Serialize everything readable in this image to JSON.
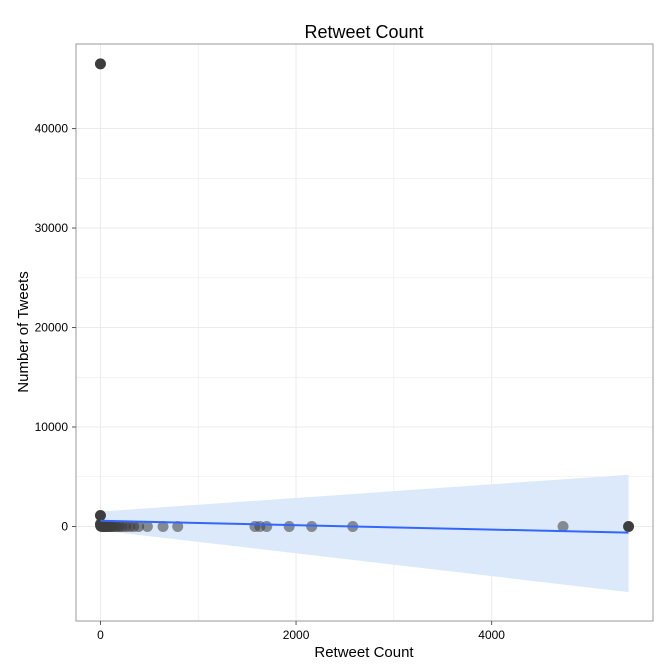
{
  "chart_data": {
    "type": "scatter",
    "title": "Retweet Count",
    "xlabel": "Retweet Count",
    "ylabel": "Number of Tweets",
    "xlim": [
      -250,
      5650
    ],
    "ylim": [
      -9500,
      48500
    ],
    "x_ticks": [
      0,
      2000,
      4000
    ],
    "y_ticks": [
      0,
      10000,
      20000,
      30000,
      40000
    ],
    "grid": true,
    "legend": "none",
    "colors": {
      "point": "#3d3d3d",
      "smooth_line": "#3366ff",
      "confidence_band": "#dce9fb",
      "grid": "#ebebeb",
      "panel_border": "#9a9a9a"
    },
    "points": [
      {
        "x": 0,
        "y": 46500,
        "alpha": 1.0
      },
      {
        "x": 0,
        "y": 1100,
        "alpha": 1.0
      },
      {
        "x": 1,
        "y": 250,
        "alpha": 1.0
      },
      {
        "x": 2,
        "y": 150,
        "alpha": 1.0
      },
      {
        "x": 3,
        "y": 80,
        "alpha": 1.0
      },
      {
        "x": 5,
        "y": 40,
        "alpha": 1.0
      },
      {
        "x": 8,
        "y": 30,
        "alpha": 1.0
      },
      {
        "x": 12,
        "y": 20,
        "alpha": 1.0
      },
      {
        "x": 18,
        "y": 15,
        "alpha": 1.0
      },
      {
        "x": 25,
        "y": 10,
        "alpha": 1.0
      },
      {
        "x": 35,
        "y": 8,
        "alpha": 1.0
      },
      {
        "x": 45,
        "y": 6,
        "alpha": 1.0
      },
      {
        "x": 55,
        "y": 5,
        "alpha": 0.95
      },
      {
        "x": 70,
        "y": 4,
        "alpha": 0.9
      },
      {
        "x": 90,
        "y": 3,
        "alpha": 0.85
      },
      {
        "x": 110,
        "y": 3,
        "alpha": 0.8
      },
      {
        "x": 130,
        "y": 2,
        "alpha": 0.75
      },
      {
        "x": 160,
        "y": 2,
        "alpha": 0.7
      },
      {
        "x": 190,
        "y": 2,
        "alpha": 0.7
      },
      {
        "x": 220,
        "y": 1,
        "alpha": 0.65
      },
      {
        "x": 260,
        "y": 1,
        "alpha": 0.65
      },
      {
        "x": 300,
        "y": 1,
        "alpha": 0.6
      },
      {
        "x": 340,
        "y": 1,
        "alpha": 0.6
      },
      {
        "x": 390,
        "y": 1,
        "alpha": 0.6
      },
      {
        "x": 480,
        "y": 1,
        "alpha": 0.55
      },
      {
        "x": 640,
        "y": 1,
        "alpha": 0.55
      },
      {
        "x": 790,
        "y": 1,
        "alpha": 0.55
      },
      {
        "x": 1580,
        "y": 1,
        "alpha": 0.55
      },
      {
        "x": 1630,
        "y": 1,
        "alpha": 0.55
      },
      {
        "x": 1700,
        "y": 1,
        "alpha": 0.55
      },
      {
        "x": 1930,
        "y": 1,
        "alpha": 0.55
      },
      {
        "x": 2160,
        "y": 1,
        "alpha": 0.55
      },
      {
        "x": 2580,
        "y": 1,
        "alpha": 0.55
      },
      {
        "x": 4730,
        "y": 1,
        "alpha": 0.55
      },
      {
        "x": 5400,
        "y": 1,
        "alpha": 1.0
      }
    ],
    "smooth": {
      "x": [
        0,
        5400
      ],
      "y": [
        580,
        -620
      ],
      "band_upper": [
        1500,
        5200
      ],
      "band_lower": [
        -400,
        -6600
      ]
    }
  }
}
